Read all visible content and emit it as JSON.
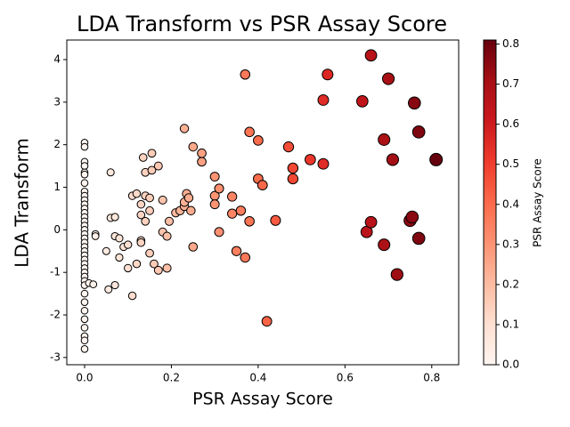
{
  "chart_data": {
    "type": "scatter",
    "title": "LDA Transform vs PSR Assay Score",
    "x_label": "PSR Assay Score",
    "y_label": "LDA Transform",
    "x": [
      0,
      0,
      0,
      0,
      0,
      0,
      0,
      0,
      0,
      0,
      0,
      0,
      0,
      0,
      0,
      0,
      0,
      0,
      0,
      0,
      0,
      0,
      0,
      0,
      0,
      0,
      0,
      0,
      0,
      0,
      0,
      0,
      0,
      0,
      0,
      0,
      0,
      0,
      0.01,
      0.02,
      0.025,
      0.025,
      0.05,
      0.055,
      0.06,
      0.06,
      0.07,
      0.07,
      0.07,
      0.08,
      0.08,
      0.09,
      0.1,
      0.1,
      0.11,
      0.11,
      0.12,
      0.12,
      0.13,
      0.13,
      0.13,
      0.13,
      0.135,
      0.14,
      0.14,
      0.14,
      0.15,
      0.15,
      0.15,
      0.155,
      0.155,
      0.16,
      0.17,
      0.17,
      0.18,
      0.18,
      0.19,
      0.19,
      0.195,
      0.21,
      0.22,
      0.23,
      0.23,
      0.23,
      0.235,
      0.24,
      0.245,
      0.25,
      0.25,
      0.27,
      0.27,
      0.3,
      0.3,
      0.3,
      0.31,
      0.31,
      0.34,
      0.34,
      0.35,
      0.36,
      0.37,
      0.37,
      0.38,
      0.38,
      0.4,
      0.4,
      0.41,
      0.42,
      0.44,
      0.47,
      0.48,
      0.48,
      0.52,
      0.55,
      0.55,
      0.56,
      0.64,
      0.65,
      0.66,
      0.66,
      0.69,
      0.69,
      0.7,
      0.71,
      0.72,
      0.75,
      0.755,
      0.76,
      0.77,
      0.77,
      0.81
    ],
    "y": [
      2.05,
      1.95,
      1.6,
      1.5,
      1.35,
      1.3,
      1.1,
      0.9,
      0.8,
      0.7,
      0.6,
      0.5,
      0.4,
      0.3,
      0.2,
      0.1,
      0.0,
      -0.1,
      -0.2,
      -0.3,
      -0.4,
      -0.5,
      -0.6,
      -0.7,
      -0.8,
      -0.9,
      -1.0,
      -1.1,
      -1.2,
      -1.3,
      -1.5,
      -1.7,
      -1.9,
      -2.1,
      -2.3,
      -2.5,
      -2.6,
      -2.8,
      -1.25,
      -1.28,
      -0.1,
      -0.15,
      -0.5,
      -1.4,
      0.28,
      1.35,
      -1.3,
      0.3,
      -0.15,
      -0.2,
      -0.65,
      -0.4,
      -0.35,
      -0.9,
      -1.55,
      0.8,
      0.85,
      -0.8,
      0.6,
      0.35,
      -0.25,
      -0.3,
      1.7,
      0.8,
      1.35,
      0.2,
      0.45,
      0.75,
      -0.55,
      1.8,
      1.4,
      -0.8,
      1.5,
      -0.95,
      0.7,
      -0.05,
      -0.9,
      -0.15,
      0.2,
      0.4,
      0.45,
      2.38,
      0.55,
      0.65,
      0.85,
      0.75,
      0.45,
      1.95,
      -0.4,
      1.8,
      1.6,
      1.25,
      0.8,
      0.6,
      0.97,
      -0.05,
      0.78,
      0.38,
      -0.5,
      0.45,
      3.65,
      -0.65,
      2.3,
      0.2,
      2.1,
      1.2,
      1.05,
      -2.15,
      0.22,
      1.95,
      1.45,
      1.2,
      1.65,
      3.05,
      1.55,
      3.65,
      3.02,
      -0.05,
      4.1,
      0.18,
      2.12,
      -0.35,
      3.55,
      1.65,
      -1.05,
      0.22,
      0.3,
      2.98,
      2.3,
      -0.2,
      1.65
    ],
    "xlim": [
      -0.041,
      0.862
    ],
    "ylim": [
      -3.17,
      4.46
    ],
    "xticks": [
      {
        "value": 0,
        "label": "0.0"
      },
      0.2,
      0.4,
      0.6,
      0.8
    ],
    "yticks": [
      -3,
      -2,
      -1,
      0,
      1,
      2,
      3,
      4
    ],
    "colorscale": [
      "#fff5f0",
      "#fee0d2",
      "#fcbba1",
      "#fc9272",
      "#fb6a4a",
      "#ef3b2c",
      "#cb181d",
      "#a50f15",
      "#67000d"
    ],
    "edge_color": "#000000",
    "colorbar": {
      "label": "PSR Assay Score",
      "lim": [
        0,
        0.81
      ],
      "ticks": [
        {
          "value": 0,
          "label": "0.0"
        },
        0.1,
        0.2,
        0.3,
        0.4,
        0.5,
        0.6,
        0.7,
        0.8
      ]
    }
  }
}
